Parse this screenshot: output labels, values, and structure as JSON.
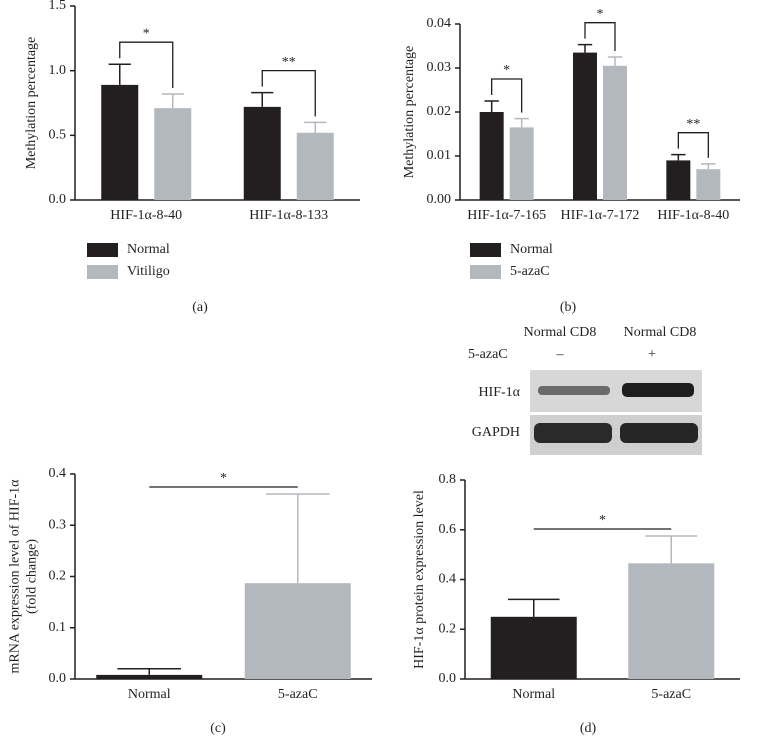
{
  "chart_data": [
    {
      "type": "bar",
      "panel_label": "(a)",
      "ylabel": [
        "Methylation percentage"
      ],
      "categories": [
        "HIF-1α-8-40",
        "HIF-1α-8-133"
      ],
      "series": [
        {
          "name": "Normal",
          "color": "#231f20",
          "values": [
            0.89,
            0.72
          ],
          "errors": [
            0.16,
            0.11
          ]
        },
        {
          "name": "Vitiligo",
          "color": "#b3b8bf",
          "values": [
            0.71,
            0.52
          ],
          "errors": [
            0.11,
            0.08
          ]
        }
      ],
      "significance": [
        "*",
        "**"
      ],
      "ylim": [
        0,
        1.5
      ],
      "yticks": [
        {
          "value": 0,
          "label": "0.0"
        },
        0.5,
        {
          "value": 1,
          "label": "1.0"
        },
        1.5
      ]
    },
    {
      "type": "bar",
      "panel_label": "(b)",
      "ylabel": [
        "Methylation percentage"
      ],
      "categories": [
        "HIF-1α-7-165",
        "HIF-1α-7-172",
        "HIF-1α-8-40"
      ],
      "series": [
        {
          "name": "Normal",
          "color": "#231f20",
          "values": [
            0.02,
            0.0335,
            0.009
          ],
          "errors": [
            0.0025,
            0.0018,
            0.0013
          ]
        },
        {
          "name": "5-azaC",
          "color": "#b3b8bf",
          "values": [
            0.0165,
            0.0305,
            0.007
          ],
          "errors": [
            0.002,
            0.002,
            0.0012
          ]
        }
      ],
      "significance": [
        "*",
        "*",
        "**"
      ],
      "ylim": [
        0,
        0.04
      ],
      "yticks": [
        {
          "value": 0,
          "label": "0.00"
        },
        0.01,
        0.02,
        0.03,
        0.04
      ]
    },
    {
      "type": "bar",
      "panel_label": "(c)",
      "ylabel": [
        "mRNA expression level of HIF-1α",
        "(fold change)"
      ],
      "categories": [
        "Normal",
        "5-azaC"
      ],
      "values": [
        0.008,
        0.187
      ],
      "errors": [
        0.012,
        0.174
      ],
      "colors": [
        "#231f20",
        "#b3b8bf"
      ],
      "significance": [
        "*"
      ],
      "ylim": [
        0,
        0.4
      ],
      "yticks": [
        {
          "value": 0,
          "label": "0.0"
        },
        0.1,
        0.2,
        0.3,
        0.4
      ]
    },
    {
      "type": "bar",
      "panel_label": "(d)",
      "ylabel": [
        "HIF-1α protein expression level"
      ],
      "categories": [
        "Normal",
        "5-azaC"
      ],
      "values": [
        0.25,
        0.465
      ],
      "errors": [
        0.07,
        0.11
      ],
      "colors": [
        "#231f20",
        "#b3b8bf"
      ],
      "significance": [
        "*"
      ],
      "ylim": [
        0,
        0.8
      ],
      "yticks": [
        {
          "value": 0,
          "label": "0.0"
        },
        0.2,
        0.4,
        0.6,
        0.8
      ]
    }
  ],
  "blot": {
    "columns": [
      "Normal CD8",
      "Normal CD8"
    ],
    "treatment_label": "5-azaC",
    "treatment": [
      "–",
      "+"
    ],
    "rows": [
      "HIF-1α",
      "GAPDH"
    ]
  }
}
